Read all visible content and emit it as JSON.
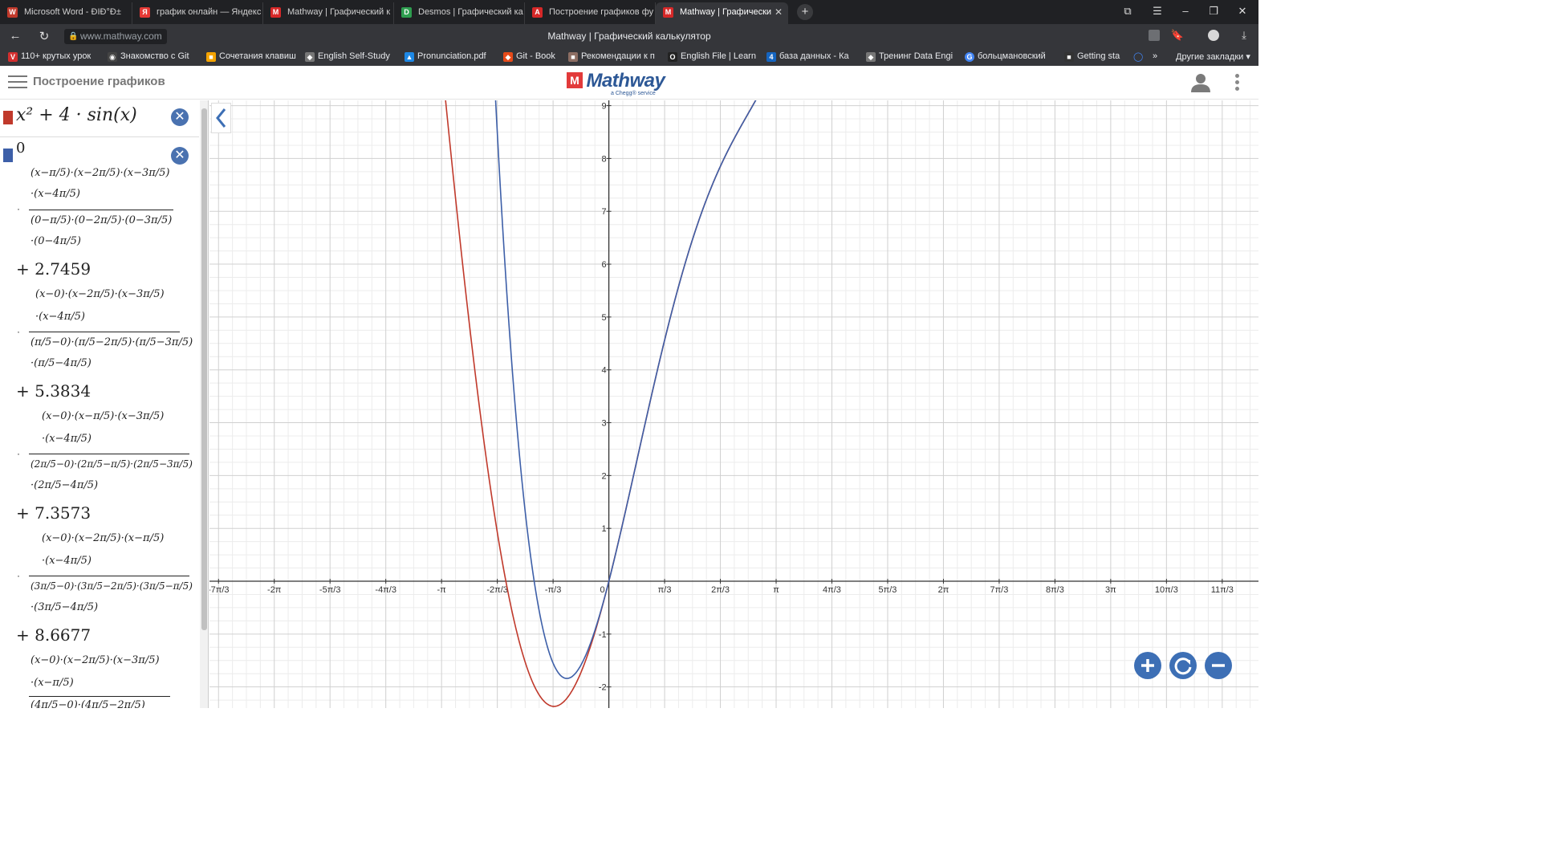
{
  "browser": {
    "tabs": [
      {
        "label": "Microsoft Word - ÐIÐ°Ð±",
        "icon": "word-icon",
        "color": "#c0392b"
      },
      {
        "label": "график онлайн — Яндекс",
        "icon": "yandex-icon",
        "color": "#e53935"
      },
      {
        "label": "Mathway | Графический к",
        "icon": "mathway-icon",
        "color": "#d62828"
      },
      {
        "label": "Desmos | Графический ка",
        "icon": "desmos-icon",
        "color": "#2e9e4f"
      },
      {
        "label": "Построение графиков фу",
        "icon": "graph-icon",
        "color": "#d62828"
      },
      {
        "label": "Mathway | Графически",
        "icon": "mathway-icon",
        "color": "#d62828",
        "active": true
      }
    ],
    "url": "www.mathway.com",
    "page_title": "Mathway | Графический калькулятор",
    "bookmarks": [
      {
        "label": "110+ крутых урок",
        "color": "#d32f2f",
        "glyph": "V"
      },
      {
        "label": "Знакомство с Git",
        "color": "#444444",
        "glyph": "◉"
      },
      {
        "label": "Сочетания клавиш",
        "color": "#f4a300",
        "glyph": "■"
      },
      {
        "label": "English Self-Study",
        "color": "#777777",
        "glyph": "◆"
      },
      {
        "label": "Pronunciation.pdf",
        "color": "#1e88e5",
        "glyph": "▲"
      },
      {
        "label": "Git - Book",
        "color": "#e64a19",
        "glyph": "◆"
      },
      {
        "label": "Рекомендации к п",
        "color": "#8d6e63",
        "glyph": "■"
      },
      {
        "label": "English File | Learn",
        "color": "#222222",
        "glyph": "O"
      },
      {
        "label": "база данных - Ка",
        "color": "#1565c0",
        "glyph": "4"
      },
      {
        "label": "Тренинг Data Engi",
        "color": "#777777",
        "glyph": "◆"
      },
      {
        "label": "больцмановский",
        "color": "#4285f4",
        "glyph": "G"
      },
      {
        "label": "Getting sta",
        "color": "#333333",
        "glyph": "■"
      }
    ],
    "other_bookmarks": "Другие закладки"
  },
  "header": {
    "title": "Построение графиков",
    "logo_text": "Mathway",
    "logo_sub": "a Chegg® service"
  },
  "expressions": [
    {
      "color": "#c0392b",
      "text": "x² + 4 · sin(x)"
    },
    {
      "color": "#3d5fa8",
      "first_term": "0"
    }
  ],
  "lagrange": {
    "coefficients": [
      "+ 2.7459",
      "+ 5.3834",
      "+ 7.3573",
      "+ 8.6677"
    ],
    "blocks": [
      {
        "num1": "(x−π/5)·(x−2π/5)·(x−3π/5)",
        "num2": "·(x−4π/5)",
        "den1": "(0−π/5)·(0−2π/5)·(0−3π/5)",
        "den2": "·(0−4π/5)"
      },
      {
        "num1": "(x−0)·(x−2π/5)·(x−3π/5)",
        "num2": "·(x−4π/5)",
        "den1": "(π/5−0)·(π/5−2π/5)·(π/5−3π/5)",
        "den2": "·(π/5−4π/5)"
      },
      {
        "num1": "(x−0)·(x−π/5)·(x−3π/5)",
        "num2": "·(x−4π/5)",
        "den1": "(2π/5−0)·(2π/5−π/5)·(2π/5−3π/5)",
        "den2": "·(2π/5−4π/5)"
      },
      {
        "num1": "(x−0)·(x−2π/5)·(x−π/5)",
        "num2": "·(x−4π/5)",
        "den1": "(3π/5−0)·(3π/5−2π/5)·(3π/5−π/5)",
        "den2": "·(3π/5−4π/5)"
      },
      {
        "num1": "(x−0)·(x−2π/5)·(x−3π/5)",
        "num2": "·(x−π/5)",
        "den1": "(4π/5−0)·(4π/5−2π/5)",
        "den2": ""
      }
    ]
  },
  "graph": {
    "x_ticks": [
      "-7π/3",
      "-2π",
      "-5π/3",
      "-4π/3",
      "-π",
      "-2π/3",
      "-π/3",
      "0",
      "π/3",
      "2π/3",
      "π",
      "4π/3",
      "5π/3",
      "2π",
      "7π/3",
      "8π/3",
      "3π",
      "10π/3",
      "11π/3"
    ],
    "y_ticks": [
      "-2",
      "-1",
      "1",
      "2",
      "3",
      "4",
      "5",
      "6",
      "7",
      "8",
      "9"
    ],
    "x_range": [
      -7.5,
      12.2
    ],
    "y_range": [
      -2.4,
      9.1
    ],
    "series_colors": [
      "#c0392b",
      "#3d5fa8"
    ]
  },
  "chart_data": {
    "type": "line",
    "series": [
      {
        "formula": "x^2 + 4*sin(x)",
        "color": "#c0392b"
      },
      {
        "formula": "Lagrange interpolation polynomial through (0,0),(π/5,2.7459),(2π/5,5.3834),(3π/5,7.3573),(4π/5,8.6677)",
        "color": "#3d5fa8"
      }
    ],
    "x_tick_labels": [
      "-7π/3",
      "-2π",
      "-5π/3",
      "-4π/3",
      "-π",
      "-2π/3",
      "-π/3",
      "0",
      "π/3",
      "2π/3",
      "π",
      "4π/3",
      "5π/3",
      "2π",
      "7π/3",
      "8π/3",
      "3π",
      "10π/3",
      "11π/3"
    ],
    "y_tick_labels": [
      "-2",
      "-1",
      "1",
      "2",
      "3",
      "4",
      "5",
      "6",
      "7",
      "8",
      "9"
    ],
    "xlim": [
      -7.5,
      12.2
    ],
    "ylim": [
      -2.4,
      9.1
    ],
    "grid": true
  }
}
